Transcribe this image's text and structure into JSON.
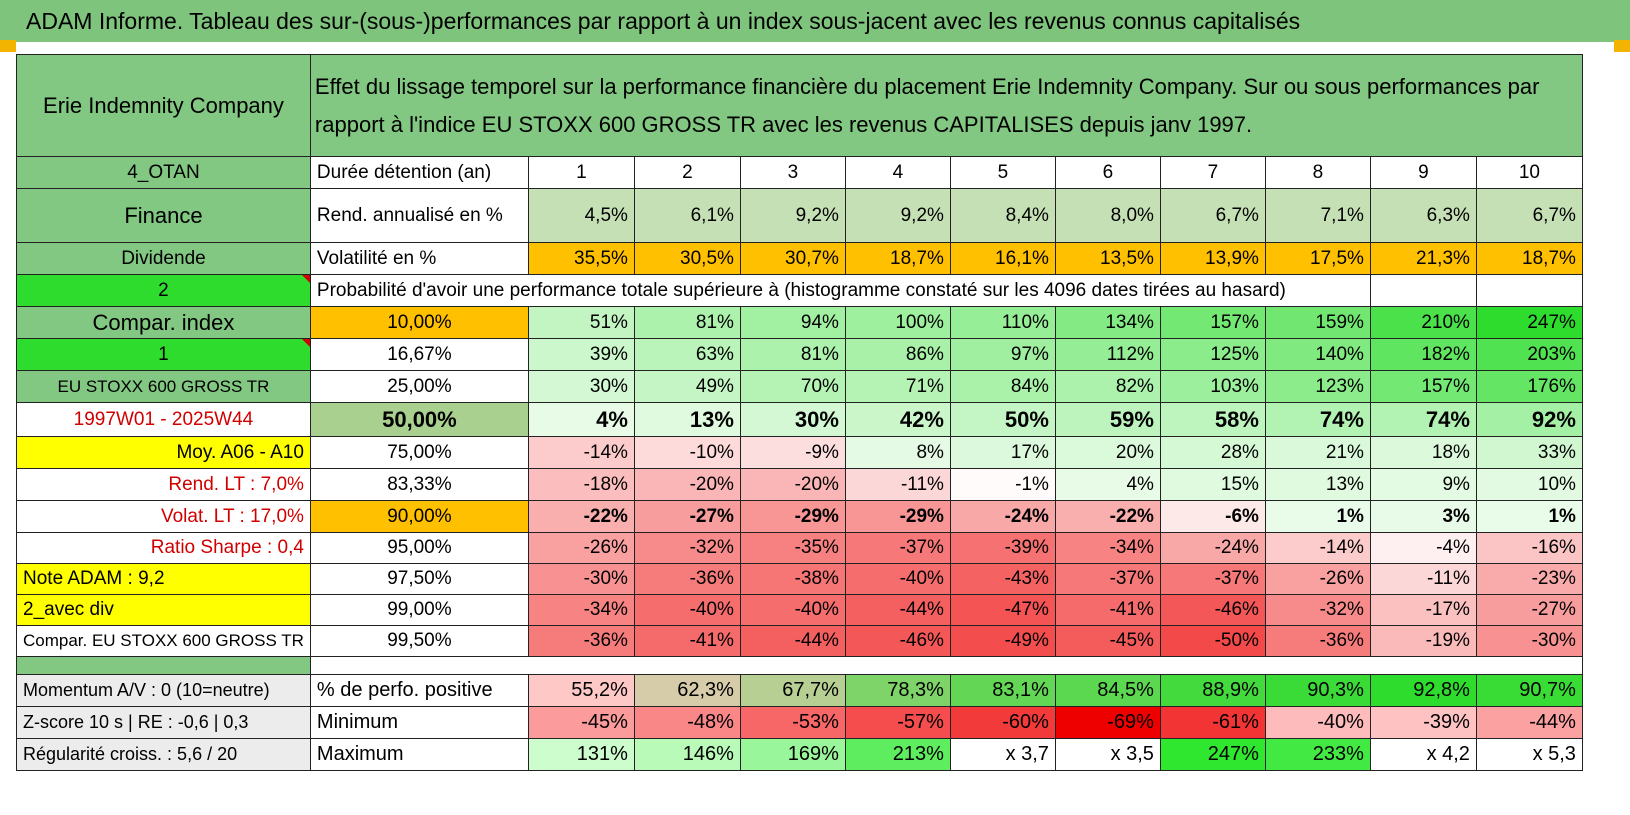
{
  "title": "ADAM Informe. Tableau des sur-(sous-)performances par rapport à un index sous-jacent avec les revenus connus capitalisés",
  "header": {
    "company": "Erie Indemnity Company",
    "description": "Effet du lissage temporel sur la performance financière du placement Erie Indemnity Company. Sur ou sous performances par rapport à l'indice EU STOXX 600 GROSS TR avec les revenus CAPITALISES depuis janv 1997."
  },
  "meta": {
    "category": "4_OTAN",
    "sector": "Finance",
    "type": "Dividende",
    "counter": "2",
    "compar_label": "Compar. index",
    "compar_value": "1",
    "index_name": "EU STOXX 600 GROSS TR",
    "period": "1997W01 - 2025W44",
    "moy": "Moy. A06 - A10",
    "rend_lt": "Rend. LT :    7,0%",
    "volat_lt": "Volat. LT :    17,0%",
    "sharpe": "Ratio Sharpe :    0,4",
    "note": "Note ADAM : 9,2",
    "div": "2_avec div",
    "compar_full": "Compar. EU STOXX 600 GROSS TR"
  },
  "row_labels": {
    "duree": "Durée détention (an)",
    "rend": "Rend. annualisé en %",
    "volat": "Volatilité en %",
    "proba": "Probabilité d'avoir une performance totale supérieure à (histogramme constaté sur les 4096 dates tirées au hasard)"
  },
  "years": [
    "1",
    "2",
    "3",
    "4",
    "5",
    "6",
    "7",
    "8",
    "9",
    "10"
  ],
  "rend": [
    "4,5%",
    "6,1%",
    "9,2%",
    "9,2%",
    "8,4%",
    "8,0%",
    "6,7%",
    "7,1%",
    "6,3%",
    "6,7%"
  ],
  "volat": [
    "35,5%",
    "30,5%",
    "30,7%",
    "18,7%",
    "16,1%",
    "13,5%",
    "13,9%",
    "17,5%",
    "21,3%",
    "18,7%"
  ],
  "quantiles": [
    {
      "q": "10,00%",
      "v": [
        "51%",
        "81%",
        "94%",
        "100%",
        "110%",
        "134%",
        "157%",
        "159%",
        "210%",
        "247%"
      ]
    },
    {
      "q": "16,67%",
      "v": [
        "39%",
        "63%",
        "81%",
        "86%",
        "97%",
        "112%",
        "125%",
        "140%",
        "182%",
        "203%"
      ]
    },
    {
      "q": "25,00%",
      "v": [
        "30%",
        "49%",
        "70%",
        "71%",
        "84%",
        "82%",
        "103%",
        "123%",
        "157%",
        "176%"
      ]
    },
    {
      "q": "50,00%",
      "v": [
        "4%",
        "13%",
        "30%",
        "42%",
        "50%",
        "59%",
        "58%",
        "74%",
        "74%",
        "92%"
      ]
    },
    {
      "q": "75,00%",
      "v": [
        "-14%",
        "-10%",
        "-9%",
        "8%",
        "17%",
        "20%",
        "28%",
        "21%",
        "18%",
        "33%"
      ]
    },
    {
      "q": "83,33%",
      "v": [
        "-18%",
        "-20%",
        "-20%",
        "-11%",
        "-1%",
        "4%",
        "15%",
        "13%",
        "9%",
        "10%"
      ]
    },
    {
      "q": "90,00%",
      "v": [
        "-22%",
        "-27%",
        "-29%",
        "-29%",
        "-24%",
        "-22%",
        "-6%",
        "1%",
        "3%",
        "1%"
      ]
    },
    {
      "q": "95,00%",
      "v": [
        "-26%",
        "-32%",
        "-35%",
        "-37%",
        "-39%",
        "-34%",
        "-24%",
        "-14%",
        "-4%",
        "-16%"
      ]
    },
    {
      "q": "97,50%",
      "v": [
        "-30%",
        "-36%",
        "-38%",
        "-40%",
        "-43%",
        "-37%",
        "-37%",
        "-26%",
        "-11%",
        "-23%"
      ]
    },
    {
      "q": "99,00%",
      "v": [
        "-34%",
        "-40%",
        "-40%",
        "-44%",
        "-47%",
        "-41%",
        "-46%",
        "-32%",
        "-17%",
        "-27%"
      ]
    },
    {
      "q": "99,50%",
      "v": [
        "-36%",
        "-41%",
        "-44%",
        "-46%",
        "-49%",
        "-45%",
        "-50%",
        "-36%",
        "-19%",
        "-30%"
      ]
    }
  ],
  "stats": [
    {
      "left": "Momentum A/V : 0 (10=neutre)",
      "label": "% de perfo. positive",
      "v": [
        "55,2%",
        "62,3%",
        "67,7%",
        "78,3%",
        "83,1%",
        "84,5%",
        "88,9%",
        "90,3%",
        "92,8%",
        "90,7%"
      ]
    },
    {
      "left": "Z-score 10 s | RE : -0,6 | 0,3",
      "label": "Minimum",
      "v": [
        "-45%",
        "-48%",
        "-53%",
        "-57%",
        "-60%",
        "-69%",
        "-61%",
        "-40%",
        "-39%",
        "-44%"
      ]
    },
    {
      "left": "Régularité croiss. : 5,6 / 20",
      "label": "Maximum",
      "v": [
        "131%",
        "146%",
        "169%",
        "213%",
        "x 3,7",
        "x 3,5",
        "247%",
        "233%",
        "x 4,2",
        "x 5,3"
      ]
    }
  ]
}
